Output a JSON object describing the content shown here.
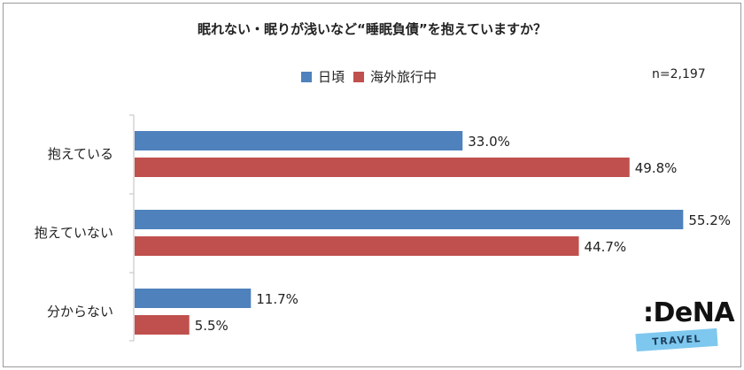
{
  "title": "眠れない・眠りが浅いなど“睡眠負債”を抱えていますか？",
  "note": "n=2,197",
  "logo": {
    "word": ":DeNA",
    "tag": "TRAVEL"
  },
  "colors": {
    "series1": "#4f81bd",
    "series2": "#c0504d",
    "axis": "#bfbfbf"
  },
  "chart_data": {
    "type": "bar",
    "orientation": "horizontal",
    "categories": [
      "抱えている",
      "抱えていない",
      "分からない"
    ],
    "series": [
      {
        "name": "日頃",
        "values": [
          33.0,
          55.2,
          11.7
        ],
        "labels": [
          "33.0%",
          "55.2%",
          "11.7%"
        ],
        "color": "#4f81bd"
      },
      {
        "name": "海外旅行中",
        "values": [
          49.8,
          44.7,
          5.5
        ],
        "labels": [
          "49.8%",
          "44.7%",
          "5.5%"
        ],
        "color": "#c0504d"
      }
    ],
    "xlim": [
      0,
      60
    ],
    "legend": "top",
    "grid": false
  }
}
